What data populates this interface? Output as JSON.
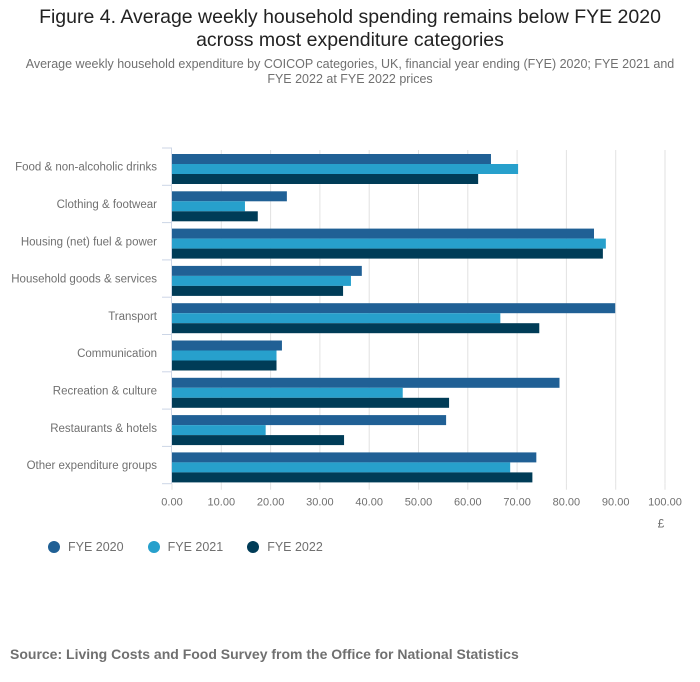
{
  "header": {
    "title_line1": "Figure 4. Average weekly household spending remains below FYE 2020",
    "title_line2": "across most expenditure categories",
    "subtitle_line1": "Average weekly household expenditure by COICOP categories, UK, financial year ending (FYE) 2020; FYE 2021 and",
    "subtitle_line2": "FYE 2022 at FYE 2022 prices"
  },
  "legend": [
    {
      "label": "FYE 2020",
      "color": "#206095"
    },
    {
      "label": "FYE 2021",
      "color": "#27a0cc"
    },
    {
      "label": "FYE 2022",
      "color": "#003c57"
    }
  ],
  "source": "Source: Living Costs and Food Survey from the Office for National Statistics",
  "chart_data": {
    "type": "bar",
    "orientation": "horizontal",
    "title": "Figure 4. Average weekly household spending remains below FYE 2020 across most expenditure categories",
    "subtitle": "Average weekly household expenditure by COICOP categories, UK, financial year ending (FYE) 2020; FYE 2021 and FYE 2022 at FYE 2022 prices",
    "categories": [
      "Food & non-alcoholic drinks",
      "Clothing & footwear",
      "Housing (net) fuel & power",
      "Household goods & services",
      "Transport",
      "Communication",
      "Recreation & culture",
      "Restaurants & hotels",
      "Other expenditure groups"
    ],
    "series": [
      {
        "name": "FYE 2020",
        "color": "#206095",
        "values": [
          64.7,
          23.3,
          85.6,
          38.5,
          89.9,
          22.3,
          78.6,
          55.6,
          73.9
        ]
      },
      {
        "name": "FYE 2021",
        "color": "#27a0cc",
        "values": [
          70.2,
          14.8,
          88.0,
          36.3,
          66.6,
          21.2,
          46.8,
          19.0,
          68.6
        ]
      },
      {
        "name": "FYE 2022",
        "color": "#003c57",
        "values": [
          62.1,
          17.4,
          87.4,
          34.7,
          74.5,
          21.2,
          56.2,
          34.9,
          73.1
        ]
      }
    ],
    "xlabel": "£",
    "ylabel": "",
    "xlim": [
      0,
      100
    ],
    "xticks": [
      "0.00",
      "10.00",
      "20.00",
      "30.00",
      "40.00",
      "50.00",
      "60.00",
      "70.00",
      "80.00",
      "90.00",
      "100.00"
    ],
    "grid": true,
    "legend_position": "bottom-left"
  }
}
